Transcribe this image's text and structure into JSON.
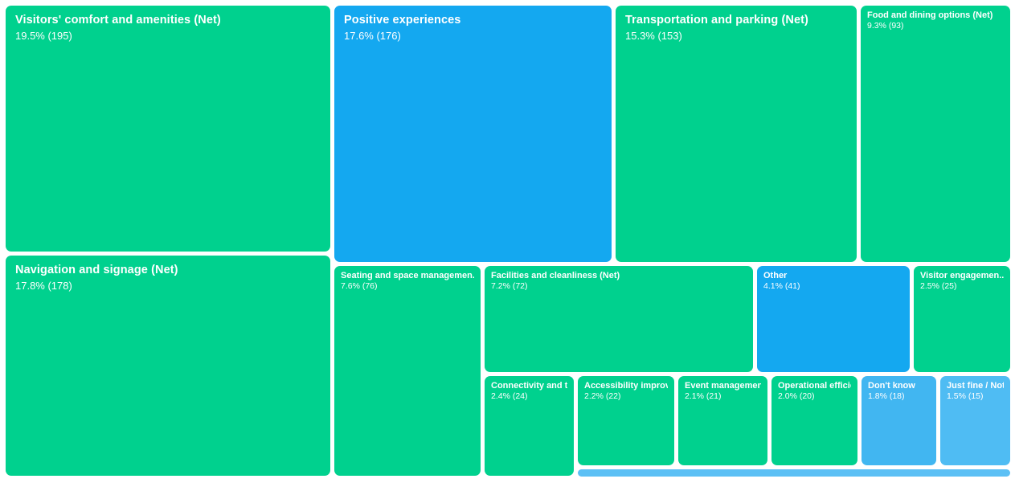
{
  "palette": {
    "green": "#00d18e",
    "blue": "#14a8f0",
    "light_blue": "#41b6f1",
    "lighter_blue": "#4fbcf3",
    "bar_blue": "#5cc0f5",
    "background": "#ffffff",
    "text": "#ffffff"
  },
  "chart_data": {
    "type": "treemap",
    "value_format": "percent (count)",
    "items": [
      {
        "id": "visitors-comfort",
        "label": "Visitors' comfort and amenities (Net)",
        "value_label": "19.5% (195)",
        "pct": 19.5,
        "count": 195,
        "color": "#00d18e",
        "size": "large"
      },
      {
        "id": "navigation-signage",
        "label": "Navigation and signage (Net)",
        "value_label": "17.8% (178)",
        "pct": 17.8,
        "count": 178,
        "color": "#00d18e",
        "size": "large"
      },
      {
        "id": "positive-experiences",
        "label": "Positive experiences",
        "value_label": "17.6% (176)",
        "pct": 17.6,
        "count": 176,
        "color": "#14a8f0",
        "size": "large"
      },
      {
        "id": "transportation-parking",
        "label": "Transportation and parking (Net)",
        "value_label": "15.3% (153)",
        "pct": 15.3,
        "count": 153,
        "color": "#00d18e",
        "size": "large"
      },
      {
        "id": "food-dining",
        "label": "Food and dining options (Net)",
        "value_label": "9.3% (93)",
        "pct": 9.3,
        "count": 93,
        "color": "#00d18e",
        "size": "small"
      },
      {
        "id": "seating-space",
        "label": "Seating and space managemen..",
        "value_label": "7.6% (76)",
        "pct": 7.6,
        "count": 76,
        "color": "#00d18e",
        "size": "small"
      },
      {
        "id": "facilities-cleanliness",
        "label": "Facilities and cleanliness (Net)",
        "value_label": "7.2% (72)",
        "pct": 7.2,
        "count": 72,
        "color": "#00d18e",
        "size": "small"
      },
      {
        "id": "other",
        "label": "Other",
        "value_label": "4.1% (41)",
        "pct": 4.1,
        "count": 41,
        "color": "#14a8f0",
        "size": "small"
      },
      {
        "id": "visitor-engagement",
        "label": "Visitor engagemen...",
        "value_label": "2.5% (25)",
        "pct": 2.5,
        "count": 25,
        "color": "#00d18e",
        "size": "small"
      },
      {
        "id": "connectivity-tech",
        "label": "Connectivity and te..",
        "value_label": "2.4% (24)",
        "pct": 2.4,
        "count": 24,
        "color": "#00d18e",
        "size": "small"
      },
      {
        "id": "accessibility",
        "label": "Accessibility improv...",
        "value_label": "2.2% (22)",
        "pct": 2.2,
        "count": 22,
        "color": "#00d18e",
        "size": "small"
      },
      {
        "id": "event-management",
        "label": "Event managemen...",
        "value_label": "2.1% (21)",
        "pct": 2.1,
        "count": 21,
        "color": "#00d18e",
        "size": "small"
      },
      {
        "id": "operational-efficiency",
        "label": "Operational efficien...",
        "value_label": "2.0% (20)",
        "pct": 2.0,
        "count": 20,
        "color": "#00d18e",
        "size": "small"
      },
      {
        "id": "dont-know",
        "label": "Don't know",
        "value_label": "1.8% (18)",
        "pct": 1.8,
        "count": 18,
        "color": "#41b6f1",
        "size": "small"
      },
      {
        "id": "just-fine",
        "label": "Just fine / Not...",
        "value_label": "1.5% (15)",
        "pct": 1.5,
        "count": 15,
        "color": "#4fbcf3",
        "size": "small"
      },
      {
        "id": "unlabeled-small",
        "label": "",
        "value_label": "",
        "pct": null,
        "count": null,
        "color": "#5cc0f5",
        "size": "bar"
      }
    ]
  }
}
